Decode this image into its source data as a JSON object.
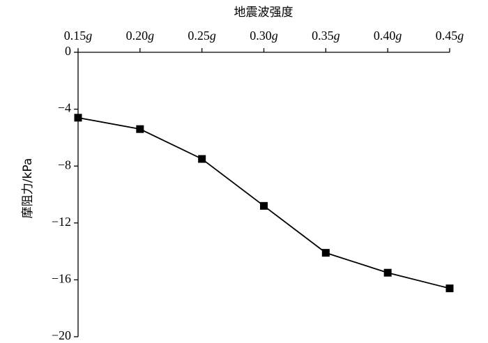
{
  "chart_data": {
    "type": "line",
    "title": "地震波强度",
    "y_label": "摩阻力/kPa",
    "categories": [
      "0.15g",
      "0.20g",
      "0.25g",
      "0.30g",
      "0.35g",
      "0.40g",
      "0.45g"
    ],
    "series": [
      {
        "name": "摩阻力",
        "color": "#000000",
        "values": [
          -4.6,
          -5.4,
          -7.5,
          -10.8,
          -14.1,
          -15.5,
          -16.6
        ]
      }
    ],
    "ylim": [
      -20,
      0
    ],
    "yticks": [
      0,
      {
        "value": -4,
        "label": "−4"
      },
      {
        "value": -8,
        "label": "−8"
      },
      {
        "value": -12,
        "label": "−12"
      },
      {
        "value": -16,
        "label": "−16"
      },
      {
        "value": -20,
        "label": "−20"
      }
    ],
    "grid": false
  }
}
